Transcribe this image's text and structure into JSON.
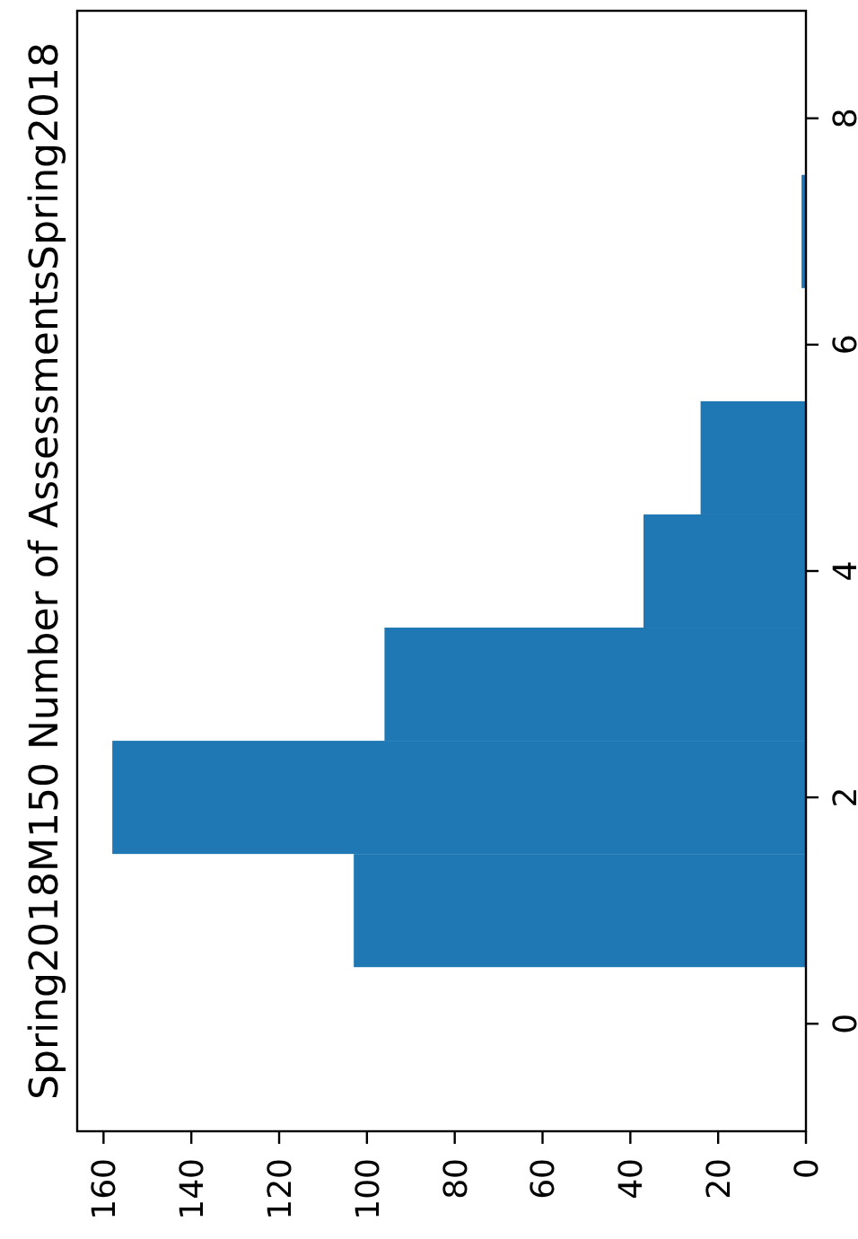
{
  "chart_data": {
    "type": "histogram",
    "orientation": "horizontal",
    "title": "Spring2018M150 Number of AssessmentsSpring2018",
    "bins": [
      0.5,
      1.5,
      2.5,
      3.5,
      4.5,
      5.5,
      6.5,
      7.5
    ],
    "values": [
      103,
      158,
      96,
      37,
      24,
      0,
      1
    ],
    "color": "#1f77b4",
    "xlim": [
      166,
      0
    ],
    "xticks": [
      0,
      20,
      40,
      60,
      80,
      100,
      120,
      140,
      160
    ],
    "ylim": [
      -0.95,
      8.95
    ],
    "yticks": [
      0,
      2,
      4,
      6,
      8
    ]
  }
}
